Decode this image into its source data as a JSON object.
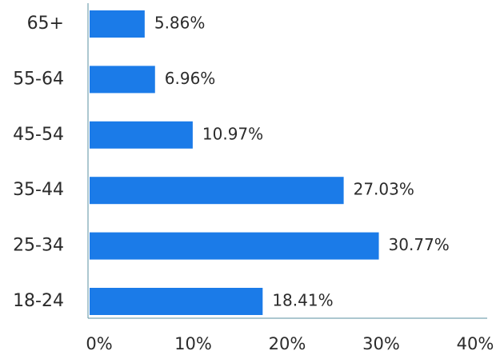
{
  "chart_data": {
    "type": "hbar",
    "categories": [
      "65+",
      "55-64",
      "45-54",
      "35-44",
      "25-34",
      "18-24"
    ],
    "values": [
      5.86,
      6.96,
      10.97,
      27.03,
      30.77,
      18.41
    ],
    "value_labels": [
      "5.86%",
      "6.96%",
      "10.97%",
      "27.03%",
      "30.77%",
      "18.41%"
    ],
    "color": "#1b7be8",
    "xlim": [
      0,
      40
    ],
    "xticks": [
      {
        "value": 0,
        "label": "0%"
      },
      {
        "value": 10,
        "label": "10%"
      },
      {
        "value": 20,
        "label": "20%"
      },
      {
        "value": 30,
        "label": "30%"
      },
      {
        "value": 40,
        "label": "40%"
      }
    ]
  }
}
